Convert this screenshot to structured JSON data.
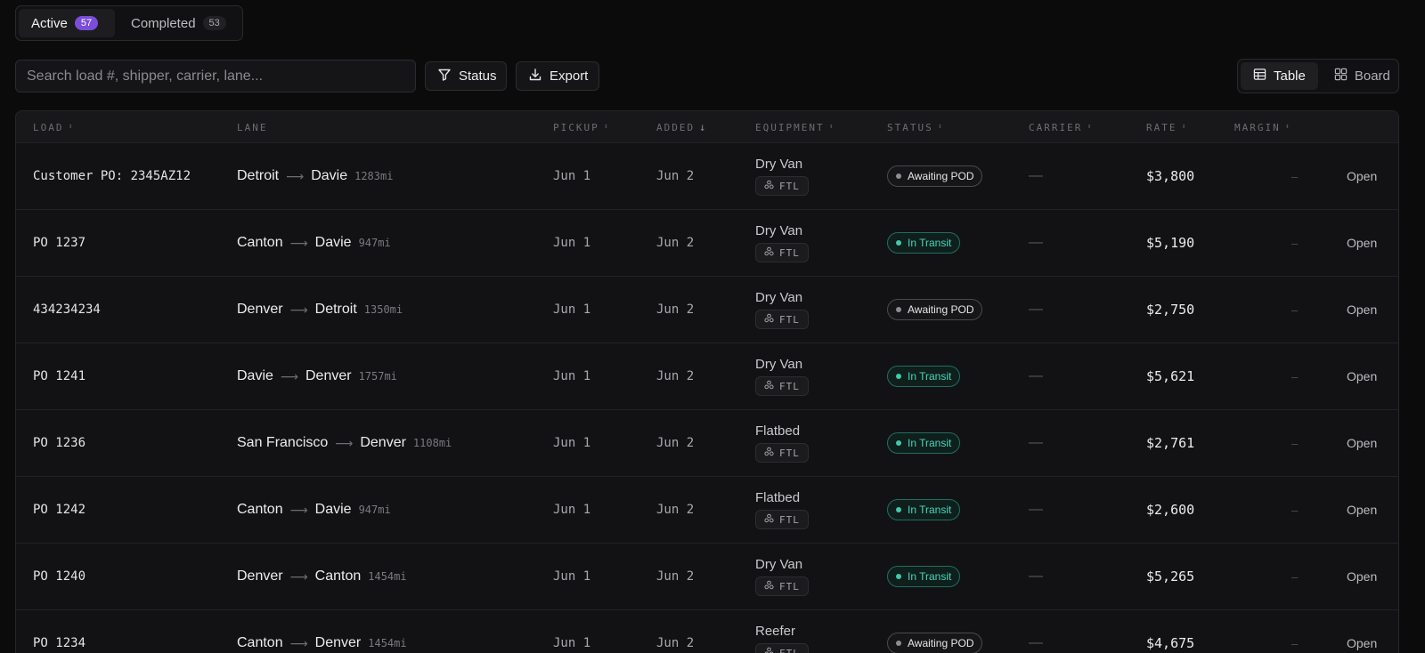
{
  "tabs": [
    {
      "label": "Active",
      "count": "57"
    },
    {
      "label": "Completed",
      "count": "53"
    }
  ],
  "search": {
    "placeholder": "Search load #, shipper, carrier, lane..."
  },
  "toolbar": {
    "status_label": "Status",
    "export_label": "Export"
  },
  "view_toggle": {
    "table_label": "Table",
    "board_label": "Board"
  },
  "columns": [
    "LOAD",
    "LANE",
    "PICKUP",
    "ADDED",
    "EQUIPMENT",
    "STATUS",
    "CARRIER",
    "RATE",
    "MARGIN"
  ],
  "rows": [
    {
      "load": "Customer PO: 2345AZ12",
      "origin": "Detroit",
      "dest": "Davie",
      "miles": "1283mi",
      "pickup": "Jun 1",
      "added": "Jun 2",
      "equipment": "Dry Van",
      "mode": "FTL",
      "status": "Awaiting POD",
      "carrier": "—",
      "rate": "$3,800",
      "margin": "–",
      "action": "Open"
    },
    {
      "load": "PO 1237",
      "origin": "Canton",
      "dest": "Davie",
      "miles": "947mi",
      "pickup": "Jun 1",
      "added": "Jun 2",
      "equipment": "Dry Van",
      "mode": "FTL",
      "status": "In Transit",
      "carrier": "—",
      "rate": "$5,190",
      "margin": "–",
      "action": "Open"
    },
    {
      "load": "434234234",
      "origin": "Denver",
      "dest": "Detroit",
      "miles": "1350mi",
      "pickup": "Jun 1",
      "added": "Jun 2",
      "equipment": "Dry Van",
      "mode": "FTL",
      "status": "Awaiting POD",
      "carrier": "—",
      "rate": "$2,750",
      "margin": "–",
      "action": "Open"
    },
    {
      "load": "PO 1241",
      "origin": "Davie",
      "dest": "Denver",
      "miles": "1757mi",
      "pickup": "Jun 1",
      "added": "Jun 2",
      "equipment": "Dry Van",
      "mode": "FTL",
      "status": "In Transit",
      "carrier": "—",
      "rate": "$5,621",
      "margin": "–",
      "action": "Open"
    },
    {
      "load": "PO 1236",
      "origin": "San Francisco",
      "dest": "Denver",
      "miles": "1108mi",
      "pickup": "Jun 1",
      "added": "Jun 2",
      "equipment": "Flatbed",
      "mode": "FTL",
      "status": "In Transit",
      "carrier": "—",
      "rate": "$2,761",
      "margin": "–",
      "action": "Open"
    },
    {
      "load": "PO 1242",
      "origin": "Canton",
      "dest": "Davie",
      "miles": "947mi",
      "pickup": "Jun 1",
      "added": "Jun 2",
      "equipment": "Flatbed",
      "mode": "FTL",
      "status": "In Transit",
      "carrier": "—",
      "rate": "$2,600",
      "margin": "–",
      "action": "Open"
    },
    {
      "load": "PO 1240",
      "origin": "Denver",
      "dest": "Canton",
      "miles": "1454mi",
      "pickup": "Jun 1",
      "added": "Jun 2",
      "equipment": "Dry Van",
      "mode": "FTL",
      "status": "In Transit",
      "carrier": "—",
      "rate": "$5,265",
      "margin": "–",
      "action": "Open"
    },
    {
      "load": "PO 1234",
      "origin": "Canton",
      "dest": "Denver",
      "miles": "1454mi",
      "pickup": "Jun 1",
      "added": "Jun 2",
      "equipment": "Reefer",
      "mode": "FTL",
      "status": "Awaiting POD",
      "carrier": "—",
      "rate": "$4,675",
      "margin": "–",
      "action": "Open"
    }
  ]
}
